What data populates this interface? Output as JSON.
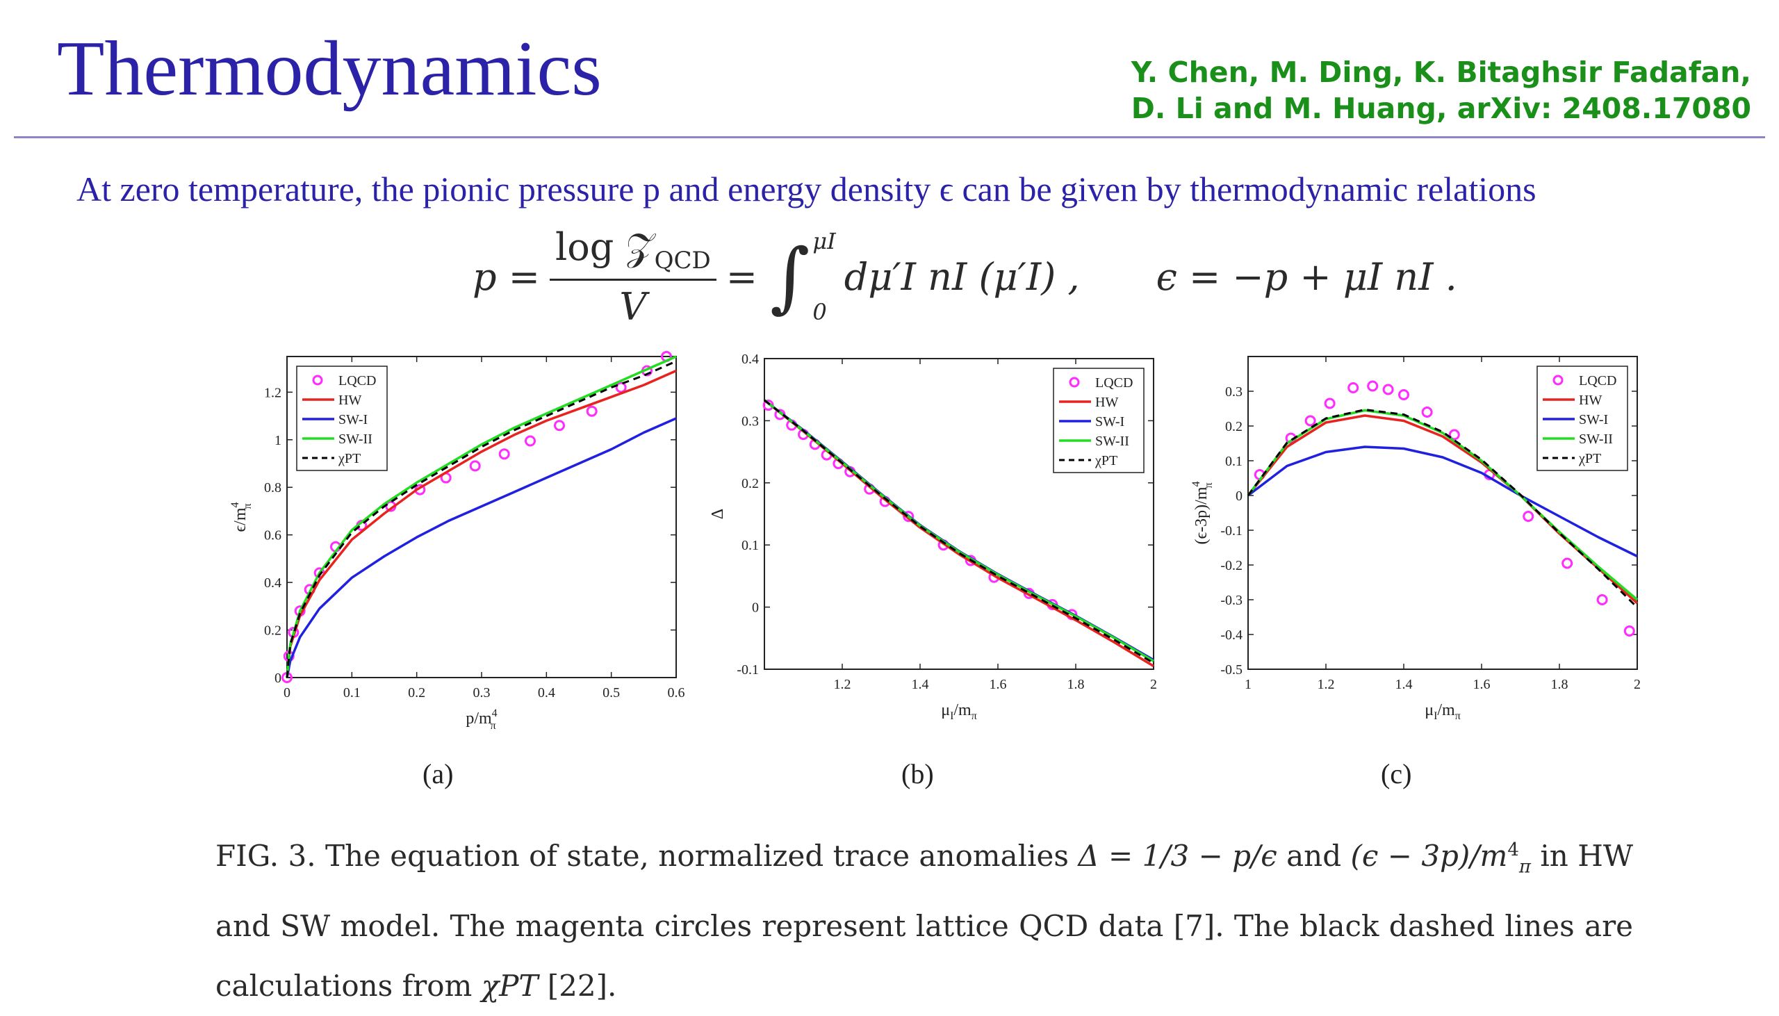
{
  "header": {
    "title": "Thermodynamics",
    "authors_line1": "Y. Chen, M. Ding, K. Bitaghsir Fadafan,",
    "authors_line2": "D. Li and M. Huang, arXiv: 2408.17080"
  },
  "intro_text": "At zero temperature, the pionic pressure p and energy density ϵ can be given by thermodynamic relations",
  "equation": {
    "lhs": "p =",
    "frac_num": "log 𝒵",
    "frac_num_sub": "QCD",
    "frac_den": "V",
    "eq2": "=",
    "int_upper": "μI",
    "int_lower": "0",
    "integrand": "dμ′I nI (μ′I) ,",
    "second": "ϵ = −p + μI nI ."
  },
  "colors": {
    "title": "#2b22a8",
    "authors": "#1a8f1a",
    "LQCD": "#ff2bff",
    "HW": "#e8231f",
    "SW-I": "#2020e0",
    "SW-II": "#22dd22",
    "chiPT": "#000000"
  },
  "legend": [
    "LQCD",
    "HW",
    "SW-I",
    "SW-II",
    "χPT"
  ],
  "chart_data": [
    {
      "id": "a",
      "type": "line",
      "panel_label": "(a)",
      "xlabel": "p/m",
      "ylabel": "ϵ/m",
      "label_sup": "4",
      "label_sub": "π",
      "xlim": [
        0,
        0.6
      ],
      "ylim": [
        0,
        1.35
      ],
      "xticks": [
        0,
        0.1,
        0.2,
        0.3,
        0.4,
        0.5,
        0.6
      ],
      "xticklabels": [
        "0",
        "0.1",
        "0.2",
        "0.3",
        "0.4",
        "0.5",
        "0.6"
      ],
      "yticks": [
        0,
        0.2,
        0.4,
        0.6,
        0.8,
        1,
        1.2
      ],
      "yticklabels": [
        "0",
        "0.2",
        "0.4",
        "0.6",
        "0.8",
        "1",
        "1.2"
      ],
      "legend_position": "top-left",
      "series": [
        {
          "name": "LQCD",
          "kind": "points",
          "x": [
            0,
            0.003,
            0.01,
            0.02,
            0.035,
            0.05,
            0.075,
            0.115,
            0.16,
            0.205,
            0.245,
            0.29,
            0.335,
            0.375,
            0.42,
            0.47,
            0.515,
            0.555,
            0.585
          ],
          "y": [
            0,
            0.09,
            0.19,
            0.28,
            0.37,
            0.44,
            0.55,
            0.64,
            0.72,
            0.79,
            0.84,
            0.89,
            0.94,
            0.995,
            1.06,
            1.12,
            1.22,
            1.29,
            1.35
          ]
        },
        {
          "name": "HW",
          "kind": "line",
          "x": [
            0,
            0.005,
            0.02,
            0.05,
            0.1,
            0.15,
            0.2,
            0.25,
            0.3,
            0.35,
            0.4,
            0.45,
            0.5,
            0.55,
            0.6
          ],
          "y": [
            0,
            0.13,
            0.26,
            0.41,
            0.58,
            0.69,
            0.79,
            0.87,
            0.95,
            1.02,
            1.08,
            1.13,
            1.18,
            1.23,
            1.29
          ]
        },
        {
          "name": "SW-I",
          "kind": "line",
          "x": [
            0,
            0.005,
            0.02,
            0.05,
            0.1,
            0.15,
            0.2,
            0.25,
            0.3,
            0.35,
            0.4,
            0.45,
            0.5,
            0.55,
            0.6
          ],
          "y": [
            0,
            0.07,
            0.17,
            0.29,
            0.42,
            0.51,
            0.59,
            0.66,
            0.72,
            0.78,
            0.84,
            0.9,
            0.96,
            1.03,
            1.09
          ]
        },
        {
          "name": "SW-II",
          "kind": "line",
          "x": [
            0,
            0.005,
            0.02,
            0.05,
            0.1,
            0.15,
            0.2,
            0.25,
            0.3,
            0.35,
            0.4,
            0.45,
            0.5,
            0.55,
            0.6
          ],
          "y": [
            0,
            0.14,
            0.28,
            0.44,
            0.62,
            0.73,
            0.82,
            0.9,
            0.98,
            1.05,
            1.11,
            1.17,
            1.23,
            1.29,
            1.35
          ]
        },
        {
          "name": "χPT",
          "kind": "dashed",
          "x": [
            0,
            0.005,
            0.02,
            0.05,
            0.1,
            0.15,
            0.2,
            0.25,
            0.3,
            0.35,
            0.4,
            0.45,
            0.5,
            0.55,
            0.6
          ],
          "y": [
            0,
            0.14,
            0.27,
            0.43,
            0.61,
            0.72,
            0.81,
            0.89,
            0.97,
            1.04,
            1.1,
            1.16,
            1.22,
            1.27,
            1.33
          ]
        }
      ]
    },
    {
      "id": "b",
      "type": "line",
      "panel_label": "(b)",
      "xlabel": "μ",
      "ylabel": "Δ",
      "xlim": [
        1,
        2
      ],
      "ylim": [
        -0.1,
        0.4
      ],
      "xticks": [
        1.2,
        1.4,
        1.6,
        1.8,
        2
      ],
      "xticklabels": [
        "1.2",
        "1.4",
        "1.6",
        "1.8",
        "2"
      ],
      "yticks": [
        -0.1,
        0,
        0.1,
        0.2,
        0.3,
        0.4
      ],
      "yticklabels": [
        "-0.1",
        "0",
        "0.1",
        "0.2",
        "0.3",
        "0.4"
      ],
      "legend_position": "top-right",
      "series": [
        {
          "name": "LQCD",
          "kind": "points",
          "x": [
            1.01,
            1.04,
            1.07,
            1.1,
            1.13,
            1.16,
            1.19,
            1.22,
            1.27,
            1.31,
            1.37,
            1.46,
            1.53,
            1.59,
            1.68,
            1.74,
            1.79
          ],
          "y": [
            0.325,
            0.31,
            0.293,
            0.278,
            0.262,
            0.245,
            0.231,
            0.218,
            0.19,
            0.17,
            0.146,
            0.1,
            0.075,
            0.048,
            0.022,
            0.004,
            -0.012
          ]
        },
        {
          "name": "HW",
          "kind": "line",
          "x": [
            1,
            1.1,
            1.2,
            1.3,
            1.4,
            1.5,
            1.6,
            1.7,
            1.8,
            1.9,
            2
          ],
          "y": [
            0.333,
            0.283,
            0.231,
            0.178,
            0.128,
            0.085,
            0.047,
            0.013,
            -0.021,
            -0.057,
            -0.095
          ]
        },
        {
          "name": "SW-I",
          "kind": "line",
          "x": [
            1,
            1.1,
            1.2,
            1.3,
            1.4,
            1.5,
            1.6,
            1.7,
            1.8,
            1.9,
            2
          ],
          "y": [
            0.333,
            0.285,
            0.234,
            0.182,
            0.132,
            0.09,
            0.053,
            0.019,
            -0.014,
            -0.049,
            -0.085
          ]
        },
        {
          "name": "SW-II",
          "kind": "line",
          "x": [
            1,
            1.1,
            1.2,
            1.3,
            1.4,
            1.5,
            1.6,
            1.7,
            1.8,
            1.9,
            2
          ],
          "y": [
            0.333,
            0.284,
            0.233,
            0.181,
            0.131,
            0.089,
            0.052,
            0.018,
            -0.015,
            -0.05,
            -0.087
          ]
        },
        {
          "name": "χPT",
          "kind": "dashed",
          "x": [
            1,
            1.1,
            1.2,
            1.3,
            1.4,
            1.5,
            1.6,
            1.7,
            1.8,
            1.9,
            2
          ],
          "y": [
            0.333,
            0.284,
            0.232,
            0.18,
            0.13,
            0.087,
            0.05,
            0.016,
            -0.018,
            -0.053,
            -0.09
          ]
        }
      ]
    },
    {
      "id": "c",
      "type": "line",
      "panel_label": "(c)",
      "xlabel": "μ",
      "ylabel": "(ϵ-3p)/m",
      "xlim": [
        1,
        2
      ],
      "ylim": [
        -0.5,
        0.4
      ],
      "xticks": [
        1,
        1.2,
        1.4,
        1.6,
        1.8,
        2
      ],
      "xticklabels": [
        "1",
        "1.2",
        "1.4",
        "1.6",
        "1.8",
        "2"
      ],
      "yticks": [
        -0.5,
        -0.4,
        -0.3,
        -0.2,
        -0.1,
        0,
        0.1,
        0.2,
        0.3
      ],
      "yticklabels": [
        "-0.5",
        "-0.4",
        "-0.3",
        "-0.2",
        "-0.1",
        "0",
        "0.1",
        "0.2",
        "0.3"
      ],
      "legend_position": "top-right",
      "series": [
        {
          "name": "LQCD",
          "kind": "points",
          "x": [
            1.03,
            1.11,
            1.16,
            1.21,
            1.27,
            1.32,
            1.36,
            1.4,
            1.46,
            1.53,
            1.62,
            1.72,
            1.82,
            1.91,
            1.98
          ],
          "y": [
            0.06,
            0.165,
            0.215,
            0.265,
            0.31,
            0.315,
            0.305,
            0.29,
            0.24,
            0.175,
            0.06,
            -0.06,
            -0.195,
            -0.3,
            -0.39
          ]
        },
        {
          "name": "HW",
          "kind": "line",
          "x": [
            1,
            1.1,
            1.2,
            1.3,
            1.4,
            1.5,
            1.6,
            1.7,
            1.8,
            1.9,
            2
          ],
          "y": [
            0,
            0.14,
            0.21,
            0.23,
            0.215,
            0.17,
            0.095,
            0.0,
            -0.11,
            -0.21,
            -0.31
          ]
        },
        {
          "name": "SW-I",
          "kind": "line",
          "x": [
            1,
            1.1,
            1.2,
            1.3,
            1.4,
            1.5,
            1.6,
            1.7,
            1.8,
            1.9,
            2
          ],
          "y": [
            0,
            0.085,
            0.125,
            0.14,
            0.135,
            0.11,
            0.065,
            0.0,
            -0.06,
            -0.12,
            -0.175
          ]
        },
        {
          "name": "SW-II",
          "kind": "line",
          "x": [
            1,
            1.1,
            1.2,
            1.3,
            1.4,
            1.5,
            1.6,
            1.7,
            1.8,
            1.9,
            2
          ],
          "y": [
            0,
            0.15,
            0.22,
            0.245,
            0.23,
            0.18,
            0.1,
            0.0,
            -0.105,
            -0.205,
            -0.3
          ]
        },
        {
          "name": "χPT",
          "kind": "dashed",
          "x": [
            1,
            1.1,
            1.2,
            1.3,
            1.4,
            1.5,
            1.6,
            1.7,
            1.8,
            1.9,
            2
          ],
          "y": [
            0,
            0.152,
            0.222,
            0.247,
            0.233,
            0.183,
            0.103,
            0.002,
            -0.108,
            -0.212,
            -0.322
          ]
        }
      ]
    }
  ],
  "caption": {
    "fig": "FIG. 3.",
    "text1": " The equation of state, normalized trace anomalies ",
    "delta_expr": "Δ = 1/3 − p/ϵ",
    "and1": " and ",
    "anomaly_expr": "(ϵ − 3p)/m",
    "in_hw": " in HW and SW model. The magenta circles represent lattice QCD data [7]. The black dashed lines are calculations from ",
    "chipt": "χPT",
    "ref": " [22]."
  }
}
